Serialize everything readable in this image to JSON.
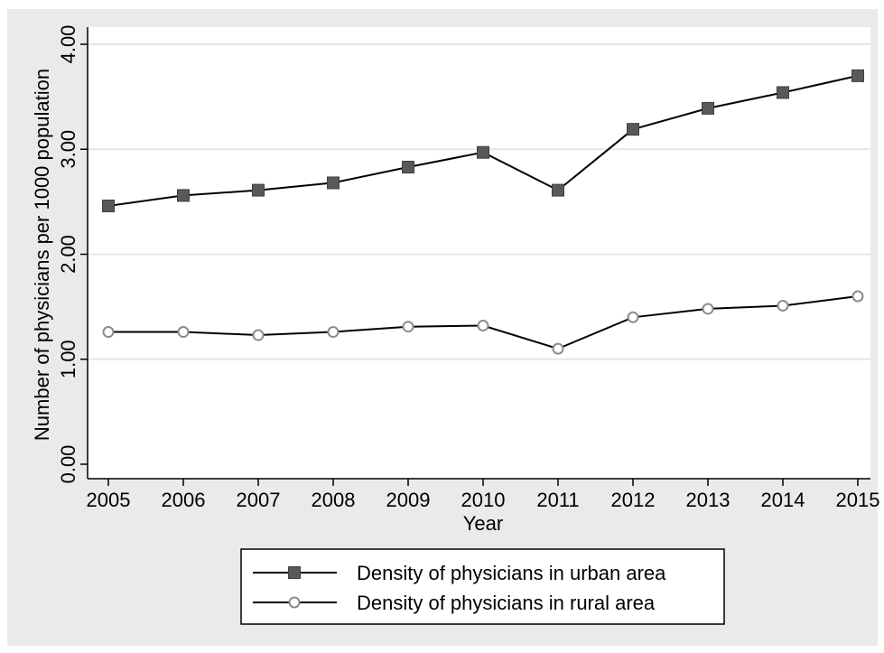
{
  "chart_data": {
    "type": "line",
    "title": "",
    "xlabel": "Year",
    "ylabel": "Number of physicians per 1000 population",
    "x": [
      2005,
      2006,
      2007,
      2008,
      2009,
      2010,
      2011,
      2012,
      2013,
      2014,
      2015
    ],
    "x_ticks": [
      "2005",
      "2006",
      "2007",
      "2008",
      "2009",
      "2010",
      "2011",
      "2012",
      "2013",
      "2014",
      "2015"
    ],
    "y_ticks": [
      "0.00",
      "1.00",
      "2.00",
      "3.00",
      "4.00"
    ],
    "ylim": [
      0,
      4
    ],
    "grid": "horizontal",
    "legend_position": "bottom",
    "series": [
      {
        "name": "Density of physicians in urban area",
        "marker": "square",
        "color": "#595959",
        "values": [
          2.46,
          2.56,
          2.61,
          2.68,
          2.83,
          2.97,
          2.61,
          3.19,
          3.39,
          3.54,
          3.7
        ]
      },
      {
        "name": "Density of physicians in rural area",
        "marker": "hollow-circle",
        "color": "#8c8c8c",
        "values": [
          1.26,
          1.26,
          1.23,
          1.26,
          1.31,
          1.32,
          1.1,
          1.4,
          1.48,
          1.51,
          1.6
        ]
      }
    ]
  },
  "colors": {
    "outer_background": "#eaeaea",
    "plot_background": "#ffffff",
    "gridline": "#e6e6e6",
    "line": "#000000"
  }
}
